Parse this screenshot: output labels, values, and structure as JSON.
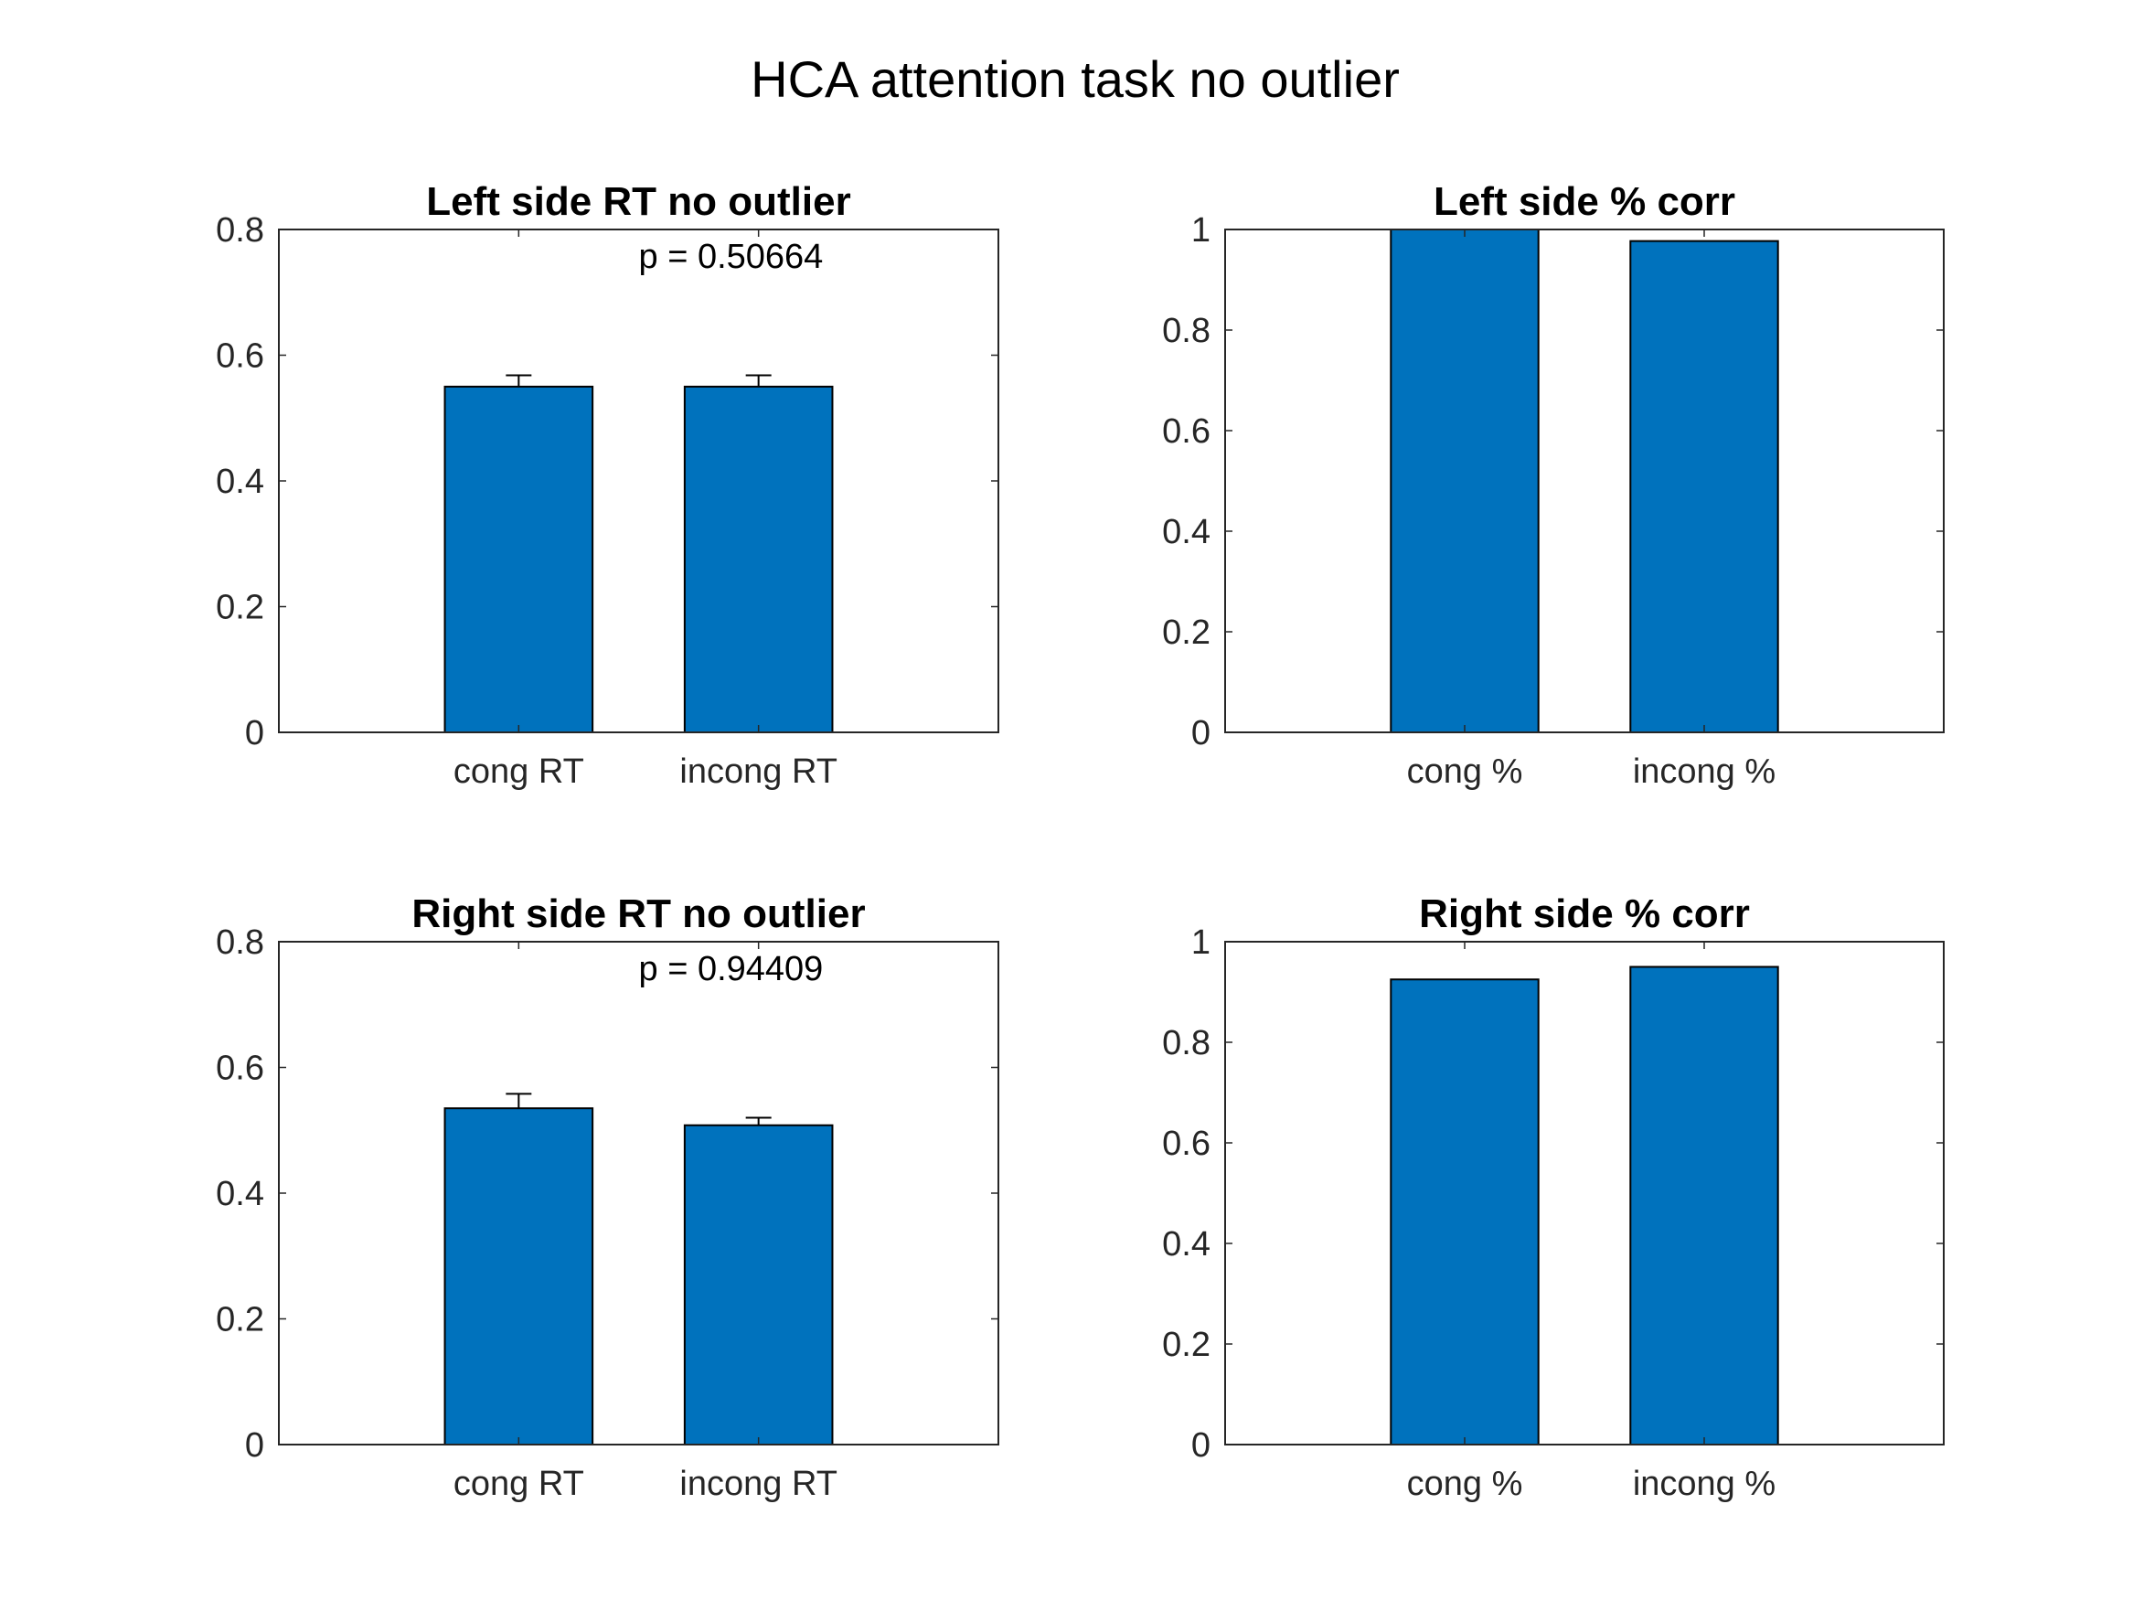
{
  "figure_title": "HCA attention task no outlier",
  "colors": {
    "bar": "#0072BD",
    "axes": "#262626",
    "errorbar": "#000000"
  },
  "chart_data": [
    {
      "type": "bar",
      "title": "Left side RT no outlier",
      "categories": [
        "cong RT",
        "incong RT"
      ],
      "values": [
        0.55,
        0.55
      ],
      "errors": [
        0.018,
        0.018
      ],
      "ylim": [
        0,
        0.8
      ],
      "yticks": [
        "0",
        "0.2",
        "0.4",
        "0.6",
        "0.8"
      ],
      "annotation": "p = 0.50664",
      "xlabel": "",
      "ylabel": "",
      "grid": false
    },
    {
      "type": "bar",
      "title": "Left side % corr",
      "categories": [
        "cong %",
        "incong %"
      ],
      "values": [
        1.0,
        0.977
      ],
      "ylim": [
        0,
        1
      ],
      "yticks": [
        "0",
        "0.2",
        "0.4",
        "0.6",
        "0.8",
        "1"
      ],
      "xlabel": "",
      "ylabel": "",
      "grid": false
    },
    {
      "type": "bar",
      "title": "Right side RT no outlier",
      "categories": [
        "cong RT",
        "incong RT"
      ],
      "values": [
        0.535,
        0.508
      ],
      "errors": [
        0.023,
        0.012
      ],
      "ylim": [
        0,
        0.8
      ],
      "yticks": [
        "0",
        "0.2",
        "0.4",
        "0.6",
        "0.8"
      ],
      "annotation": "p = 0.94409",
      "xlabel": "",
      "ylabel": "",
      "grid": false
    },
    {
      "type": "bar",
      "title": "Right side % corr",
      "categories": [
        "cong %",
        "incong %"
      ],
      "values": [
        0.925,
        0.95
      ],
      "ylim": [
        0,
        1
      ],
      "yticks": [
        "0",
        "0.2",
        "0.4",
        "0.6",
        "0.8",
        "1"
      ],
      "xlabel": "",
      "ylabel": "",
      "grid": false
    }
  ]
}
